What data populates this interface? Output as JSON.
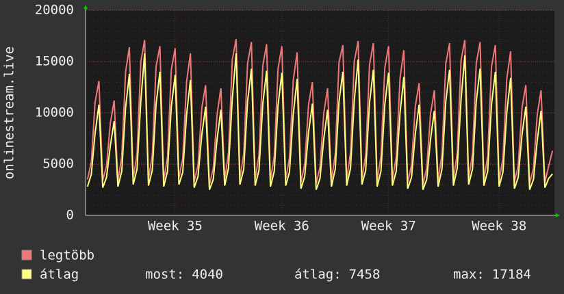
{
  "chart_data": {
    "type": "line",
    "ylabel": "onlinestream.live",
    "ylim": [
      0,
      20000
    ],
    "yticks": [
      0,
      5000,
      10000,
      15000,
      20000
    ],
    "grid": true,
    "categories": [
      null,
      null,
      null,
      null,
      null,
      null,
      null,
      null,
      null,
      null,
      null,
      null,
      null,
      null,
      null,
      null,
      null,
      null,
      null,
      null,
      null,
      null,
      null,
      "Week 35",
      null,
      null,
      null,
      null,
      null,
      null,
      null,
      null,
      null,
      null,
      null,
      null,
      null,
      null,
      null,
      null,
      null,
      null,
      null,
      null,
      null,
      null,
      null,
      null,
      null,
      null,
      null,
      "Week 36",
      null,
      null,
      null,
      null,
      null,
      null,
      null,
      null,
      null,
      null,
      null,
      null,
      null,
      null,
      null,
      null,
      null,
      null,
      null,
      null,
      null,
      null,
      null,
      null,
      null,
      null,
      null,
      "Week 37",
      null,
      null,
      null,
      null,
      null,
      null,
      null,
      null,
      null,
      null,
      null,
      null,
      null,
      null,
      null,
      null,
      null,
      null,
      null,
      null,
      null,
      null,
      null,
      null,
      null,
      null,
      null,
      null,
      "Week 38",
      null,
      null,
      null,
      null,
      null,
      null,
      null,
      null,
      null,
      null,
      null,
      null,
      null,
      null
    ],
    "series": [
      {
        "name": "legtöbb",
        "color": "#f07878",
        "values": [
          3500,
          5200,
          11000,
          13100,
          3400,
          4800,
          9000,
          11200,
          3300,
          5800,
          14000,
          16400,
          3600,
          6000,
          15000,
          17100,
          3500,
          5900,
          14500,
          16500,
          3400,
          5700,
          14200,
          16300,
          3600,
          5600,
          13000,
          15800,
          3300,
          4900,
          10500,
          12700,
          3000,
          4600,
          9800,
          12400,
          3500,
          6100,
          15200,
          17184,
          3600,
          6000,
          14800,
          16900,
          3500,
          5900,
          14600,
          16700,
          3400,
          5800,
          14300,
          16500,
          3500,
          5600,
          13200,
          15900,
          3200,
          5000,
          10800,
          13000,
          3100,
          4700,
          10000,
          12400,
          3400,
          6000,
          14900,
          16600,
          3500,
          6100,
          15000,
          17000,
          3600,
          5900,
          14700,
          16800,
          3400,
          5800,
          14400,
          16500,
          3500,
          5700,
          13400,
          16100,
          3200,
          4900,
          10600,
          12900,
          3000,
          4600,
          9900,
          12200,
          3400,
          6000,
          14800,
          16800,
          3500,
          6100,
          15100,
          17100,
          3600,
          6000,
          14800,
          16900,
          3500,
          5800,
          14500,
          16600,
          3400,
          5600,
          13300,
          16000,
          3200,
          4900,
          10500,
          12700,
          3100,
          4600,
          9800,
          12200,
          3200,
          4800,
          6300
        ]
      },
      {
        "name": "átlag",
        "color": "#ffff80",
        "values": [
          2800,
          4000,
          8000,
          10800,
          2700,
          3700,
          6800,
          9200,
          2800,
          4300,
          10500,
          13800,
          3000,
          4500,
          11200,
          15800,
          2900,
          4400,
          10800,
          14000,
          2800,
          4300,
          10600,
          13700,
          3000,
          4200,
          9800,
          13200,
          2700,
          3800,
          7900,
          10600,
          2500,
          3500,
          7400,
          10300,
          2900,
          4600,
          11400,
          15800,
          3000,
          4500,
          11100,
          14300,
          2900,
          4400,
          10900,
          14100,
          2800,
          4300,
          10700,
          13900,
          2900,
          4200,
          9900,
          13300,
          2600,
          3800,
          8100,
          10900,
          2500,
          3600,
          7500,
          10300,
          2800,
          4500,
          11100,
          14000,
          2900,
          4600,
          11200,
          15200,
          3000,
          4400,
          11000,
          14200,
          2800,
          4300,
          10800,
          13900,
          2900,
          4300,
          10000,
          13500,
          2600,
          3700,
          7900,
          10800,
          2500,
          3500,
          7400,
          10200,
          2800,
          4500,
          11100,
          14200,
          2900,
          4600,
          11300,
          15600,
          3000,
          4500,
          11100,
          14300,
          2900,
          4300,
          10800,
          14000,
          2800,
          4200,
          10000,
          13400,
          2600,
          3700,
          7900,
          10600,
          2500,
          3500,
          7300,
          10200,
          2700,
          3600,
          4040
        ]
      }
    ],
    "stats": [
      {
        "label": "most:",
        "value": 4040
      },
      {
        "label": "átlag:",
        "value": 7458
      },
      {
        "label": "max:",
        "value": 17184
      }
    ]
  }
}
